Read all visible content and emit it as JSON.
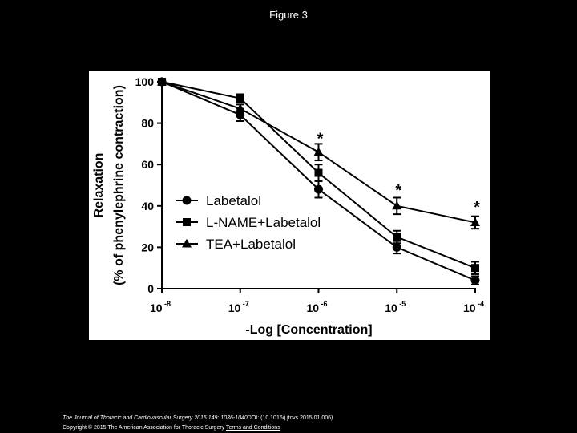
{
  "figure_title": "Figure 3",
  "chart_data": {
    "type": "line",
    "title": "",
    "xlabel": "-Log [Concentration]",
    "ylabel_line1": "Relaxation",
    "ylabel_line2": "(% of  phenylephrine contraction)",
    "x_scale": "log",
    "x": [
      1e-08,
      1e-07,
      1e-06,
      1e-05,
      0.0001
    ],
    "x_tick_labels": [
      {
        "base": "10",
        "exp": "-8"
      },
      {
        "base": "10",
        "exp": "-7"
      },
      {
        "base": "10",
        "exp": "-6"
      },
      {
        "base": "10",
        "exp": "-5"
      },
      {
        "base": "10",
        "exp": "-4"
      }
    ],
    "ylim": [
      0,
      100
    ],
    "y_ticks": [
      0,
      20,
      40,
      60,
      80,
      100
    ],
    "grid": false,
    "legend_position": "center-left",
    "series": [
      {
        "name": "Labetalol",
        "marker": "circle",
        "values": [
          100,
          84,
          48,
          20,
          4
        ],
        "errors": [
          0,
          3,
          4,
          3,
          2
        ]
      },
      {
        "name": "L-NAME+Labetalol",
        "marker": "square",
        "values": [
          100,
          92,
          56,
          25,
          10
        ],
        "errors": [
          0,
          2,
          4,
          3,
          3
        ]
      },
      {
        "name": "TEA+Labetalol",
        "marker": "triangle",
        "values": [
          100,
          87,
          66,
          40,
          32
        ],
        "errors": [
          0,
          2,
          4,
          4,
          3
        ]
      }
    ],
    "annotations": [
      {
        "text": "*",
        "x": 1e-06,
        "y": 73
      },
      {
        "text": "*",
        "x": 1e-05,
        "y": 48
      },
      {
        "text": "*",
        "x": 0.0001,
        "y": 40
      }
    ]
  },
  "footer": {
    "journal": "The Journal of Thoracic and Cardiovascular Surgery 2015 149: 1036-1040",
    "doi": "DOI: (10.1016/j.jtcvs.2015.01.006)",
    "copyright": "Copyright © 2015 The American Association for Thoracic Surgery",
    "link_text": "Terms and Conditions"
  }
}
